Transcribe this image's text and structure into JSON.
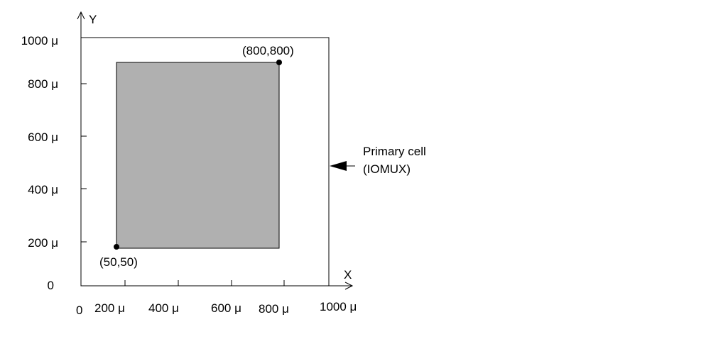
{
  "axes": {
    "x_label": "X",
    "y_label": "Y",
    "origin_label": "0",
    "x_ticks": [
      "200 μ",
      "400 μ",
      "600 μ",
      "800 μ",
      "1000 μ"
    ],
    "y_ticks": [
      "0",
      "200 μ",
      "400 μ",
      "600 μ",
      "800 μ",
      "1000 μ"
    ]
  },
  "region": {
    "fill_color": "#b0b0b0",
    "lower_left": {
      "x": 50,
      "y": 50,
      "label": "(50,50)"
    },
    "upper_right": {
      "x": 800,
      "y": 800,
      "label": "(800,800)"
    }
  },
  "primary_cell": {
    "label_line1": "Primary cell",
    "label_line2": "(IOMUX)"
  }
}
